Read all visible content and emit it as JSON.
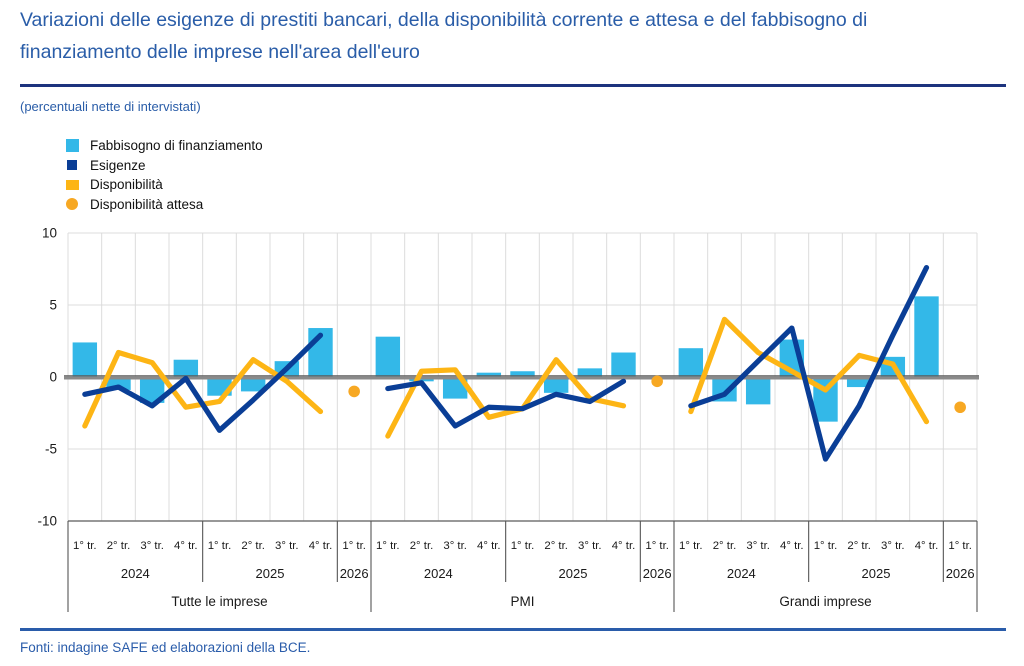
{
  "header": {
    "title": "Variazioni delle esigenze di prestiti bancari, della disponibilità corrente e attesa e del fabbisogno di finanziamento delle imprese nell'area dell'euro",
    "subtitle": "(percentuali nette di intervistati)"
  },
  "legend": [
    {
      "label": "Fabbisogno di finanziamento",
      "shape": "square-lg",
      "color": "#33B8E8"
    },
    {
      "label": "Esigenze",
      "shape": "square-sm",
      "color": "#0A3E96"
    },
    {
      "label": "Disponibilità",
      "shape": "rect",
      "color": "#FDB515"
    },
    {
      "label": "Disponibilità attesa",
      "shape": "circle",
      "color": "#F7A823"
    }
  ],
  "colors": {
    "bar": "#33B8E8",
    "needs_line": "#0A3E96",
    "availability_line": "#FDB515",
    "expected_dot": "#F7A823",
    "grid": "#DCDCDC",
    "zero_line": "#8A8A8A",
    "zero_line_dark": "#5A5A5A",
    "axis_dark": "#555555",
    "text_dark": "#1A1A1A"
  },
  "chart_data": {
    "type": "bar+line",
    "ylim": [
      -10,
      10
    ],
    "yticks": [
      10,
      5,
      0,
      -5,
      -10
    ],
    "quarters": [
      "1° tr.",
      "2° tr.",
      "3° tr.",
      "4° tr.",
      "1° tr.",
      "2° tr.",
      "3° tr.",
      "4° tr.",
      "1° tr."
    ],
    "years": [
      "2024",
      "2025",
      "2026"
    ],
    "series_names": {
      "bars": "Fabbisogno di finanziamento",
      "dark_line": "Esigenze",
      "orange_line": "Disponibilità",
      "dot": "Disponibilità attesa"
    },
    "groups": [
      {
        "label": "Tutte le imprese",
        "fabbisogno": [
          2.4,
          -0.9,
          -1.8,
          1.2,
          -1.3,
          -1.0,
          1.1,
          3.4
        ],
        "esigenze": [
          -1.2,
          -0.7,
          -2.0,
          -0.1,
          -3.7,
          -1.6,
          0.6,
          2.9
        ],
        "disponibilita": [
          -3.4,
          1.7,
          1.0,
          -2.1,
          -1.7,
          1.2,
          -0.3,
          -2.4
        ],
        "disponibilita_attesa": -1.0
      },
      {
        "label": "PMI",
        "fabbisogno": [
          2.8,
          -0.3,
          -1.5,
          0.3,
          0.4,
          -1.1,
          0.6,
          1.7
        ],
        "esigenze": [
          -0.8,
          -0.4,
          -3.4,
          -2.1,
          -2.2,
          -1.2,
          -1.7,
          -0.3
        ],
        "disponibilita": [
          -4.1,
          0.4,
          0.5,
          -2.8,
          -2.2,
          1.2,
          -1.5,
          -2.0
        ],
        "disponibilita_attesa": -0.3
      },
      {
        "label": "Grandi imprese",
        "fabbisogno": [
          2.0,
          -1.7,
          -1.9,
          2.6,
          -3.1,
          -0.7,
          1.4,
          5.6
        ],
        "esigenze": [
          -2.0,
          -1.2,
          1.1,
          3.4,
          -5.7,
          -2.0,
          2.9,
          7.6
        ],
        "disponibilita": [
          -2.4,
          4.0,
          1.7,
          0.4,
          -0.9,
          1.5,
          0.9,
          -3.1
        ],
        "disponibilita_attesa": -2.1
      }
    ]
  },
  "footer": {
    "source": "Fonti: indagine SAFE ed elaborazioni della BCE."
  }
}
